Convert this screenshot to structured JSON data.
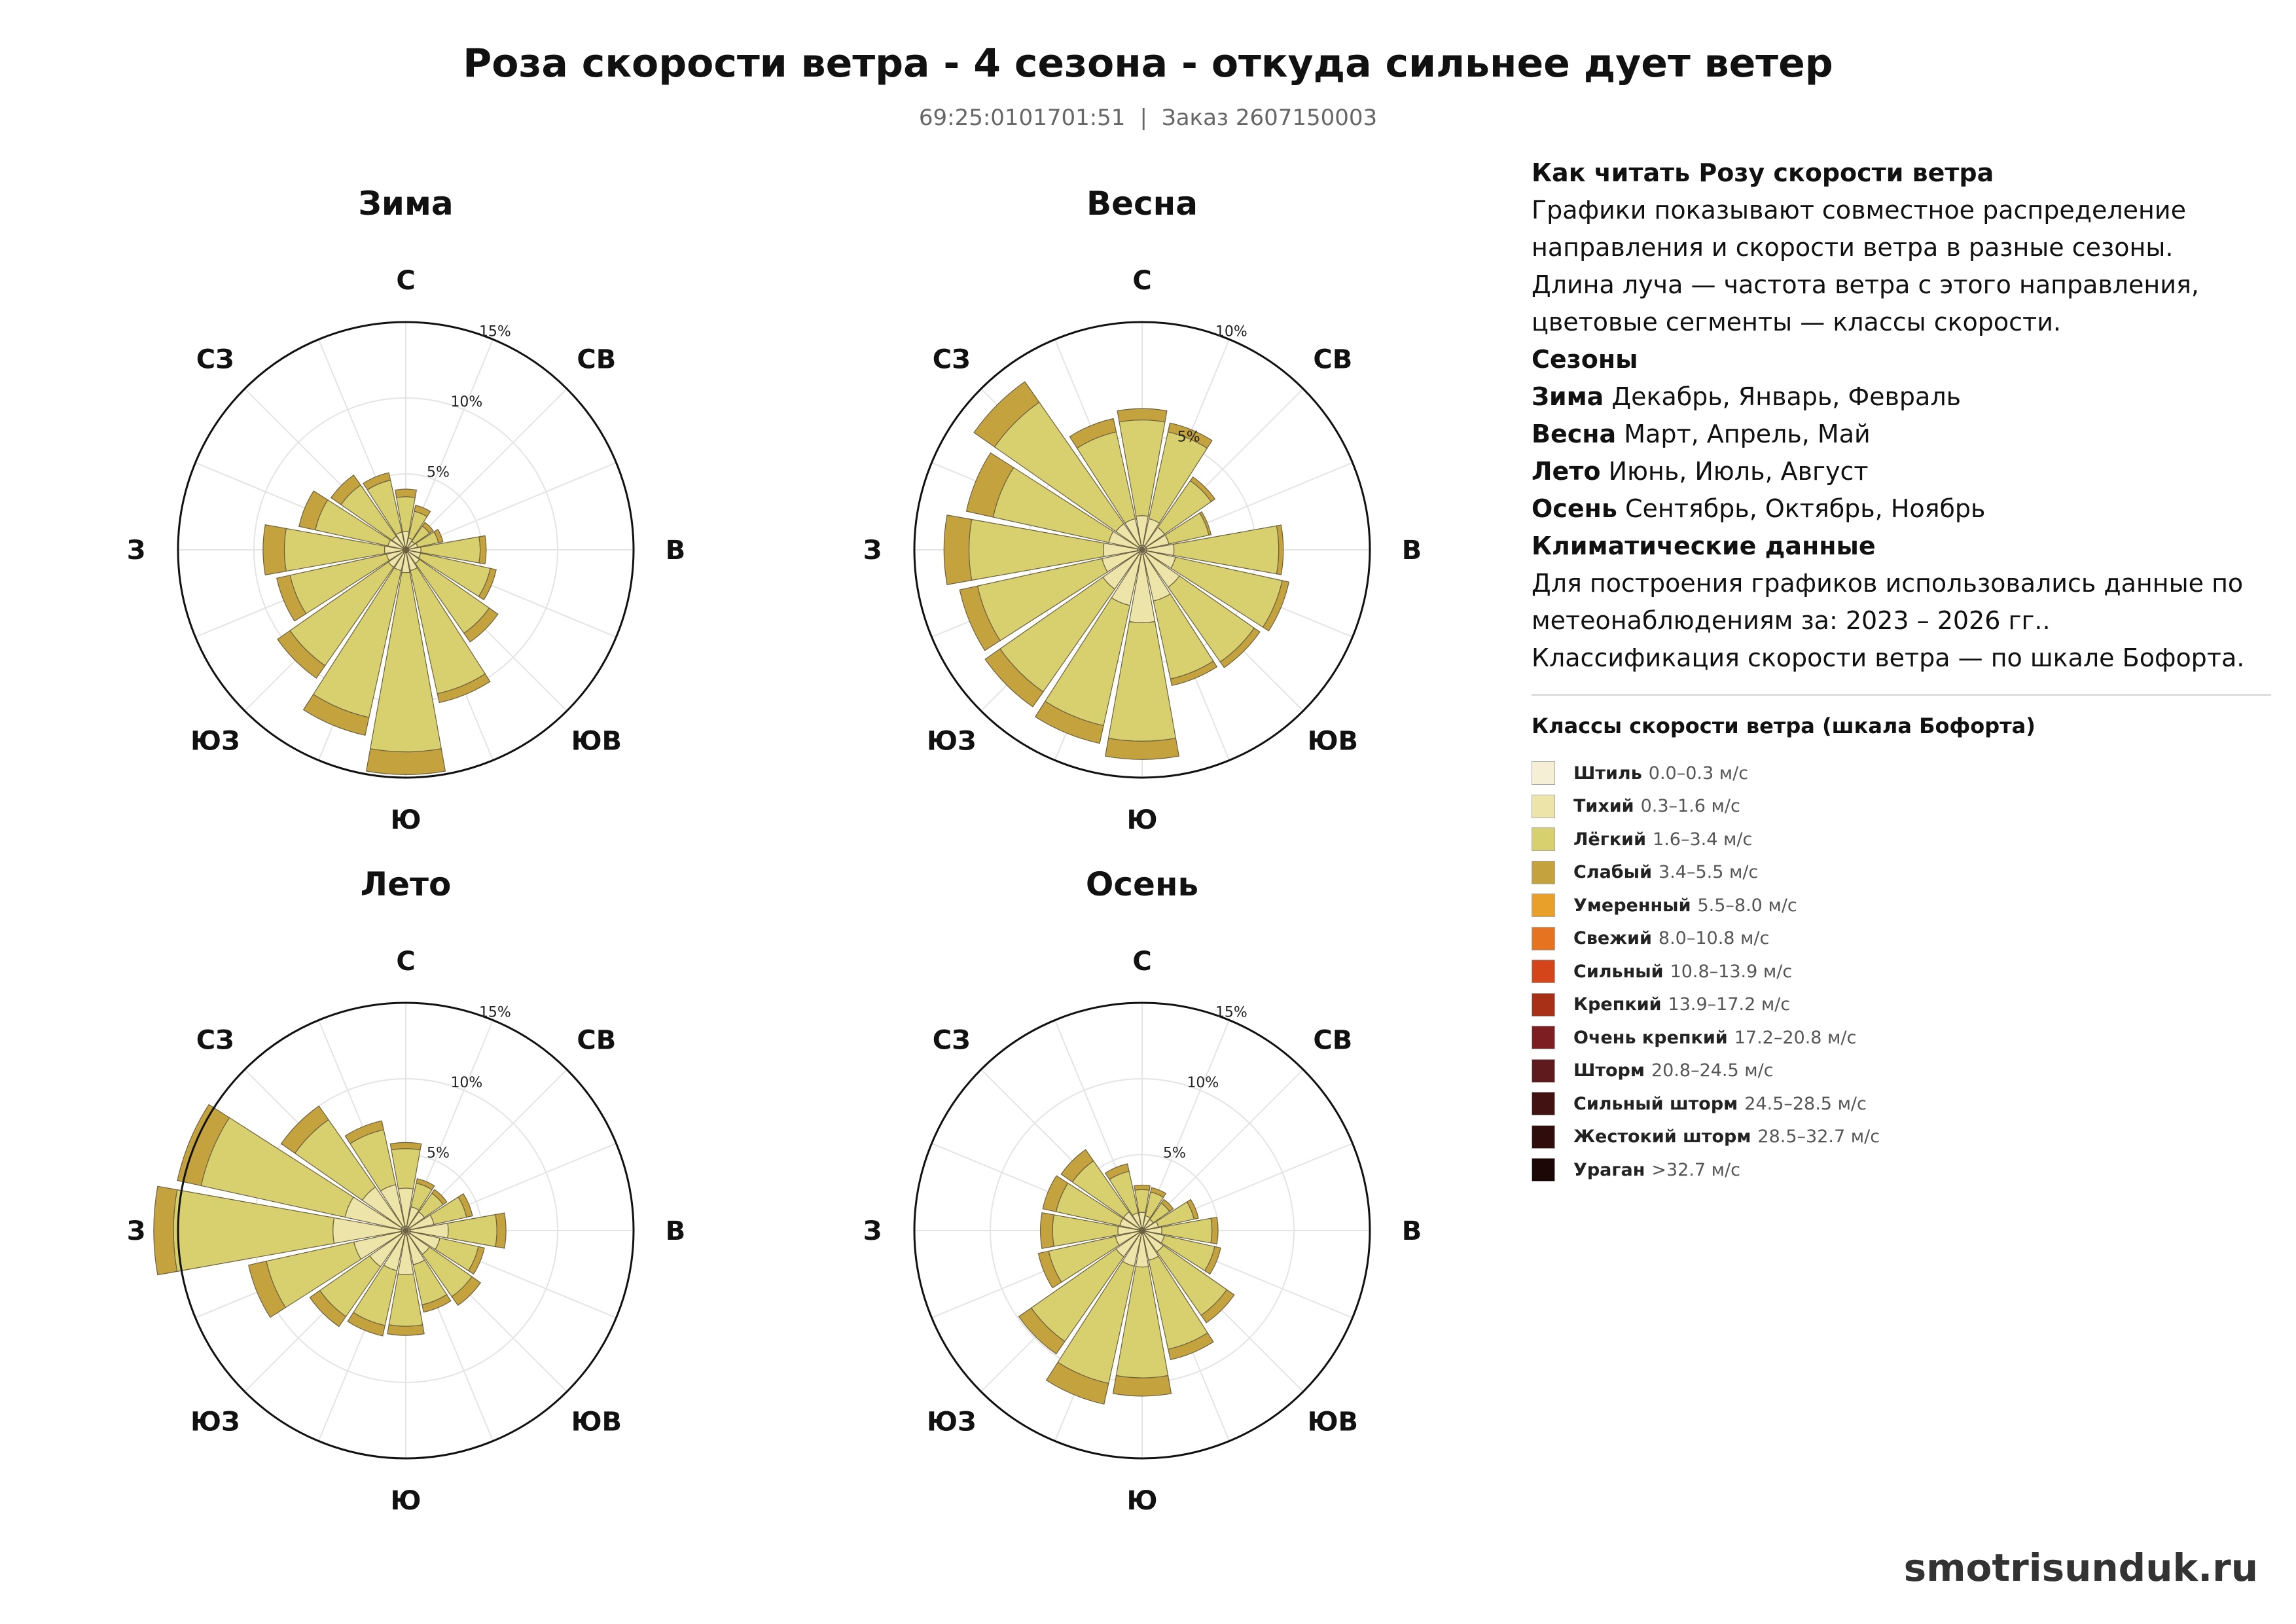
{
  "header": {
    "title": "Роза скорости ветра - 4 сезона - откуда сильнее дует ветер",
    "cadastral": "69:25:0101701:51",
    "separator": "|",
    "order": "Заказ 2607150003"
  },
  "info": {
    "read_title": "Как читать Розу скорости ветра",
    "read_text": "Графики показывают совместное распределение направления и скорости ветра в разные сезоны. Длина луча — частота ветра с этого направления, цветовые сегменты — классы скорости.",
    "seasons_title": "Сезоны",
    "seasons": [
      {
        "name": "Зима",
        "months": "Декабрь, Январь, Февраль"
      },
      {
        "name": "Весна",
        "months": "Март, Апрель, Май"
      },
      {
        "name": "Лето",
        "months": "Июнь, Июль, Август"
      },
      {
        "name": "Осень",
        "months": "Сентябрь, Октябрь, Ноябрь"
      }
    ],
    "climate_title": "Климатические данные",
    "climate_text": "Для построения графиков использовались данные по метеонаблюдениям за: 2023 – 2026 гг..",
    "beaufort_text": "Классификация скорости ветра — по шкале Бофорта."
  },
  "legend": {
    "title": "Классы скорости ветра (шкала Бофорта)",
    "items": [
      {
        "name": "Штиль",
        "range": "0.0–0.3 м/с",
        "color": "#f5f0d5"
      },
      {
        "name": "Тихий",
        "range": "0.3–1.6 м/с",
        "color": "#ece4a8"
      },
      {
        "name": "Лёгкий",
        "range": "1.6–3.4 м/с",
        "color": "#d8d06e"
      },
      {
        "name": "Слабый",
        "range": "3.4–5.5 м/с",
        "color": "#c4a23e"
      },
      {
        "name": "Умеренный",
        "range": "5.5–8.0 м/с",
        "color": "#e8a02a"
      },
      {
        "name": "Свежий",
        "range": "8.0–10.8 м/с",
        "color": "#e6731f"
      },
      {
        "name": "Сильный",
        "range": "10.8–13.9 м/с",
        "color": "#d4451a"
      },
      {
        "name": "Крепкий",
        "range": "13.9–17.2 м/с",
        "color": "#a83016"
      },
      {
        "name": "Очень крепкий",
        "range": "17.2–20.8 м/с",
        "color": "#7d1f22"
      },
      {
        "name": "Шторм",
        "range": "20.8–24.5 м/с",
        "color": "#5e1a1c"
      },
      {
        "name": "Сильный шторм",
        "range": "24.5–28.5 м/с",
        "color": "#421212"
      },
      {
        "name": "Жестокий шторм",
        "range": "28.5–32.7 м/с",
        "color": "#2e0d0c"
      },
      {
        "name": "Ураган",
        "range": ">32.7 м/с",
        "color": "#1c0707"
      }
    ]
  },
  "footer": "smotrisunduk.ru",
  "chart_data": [
    {
      "type": "windrose",
      "title": "Зима",
      "directions": [
        "С",
        "ССВ",
        "СВ",
        "ВСВ",
        "В",
        "ВЮВ",
        "ЮВ",
        "ЮЮВ",
        "Ю",
        "ЮЮЗ",
        "ЮЗ",
        "ЗЮЗ",
        "З",
        "ЗСЗ",
        "СЗ",
        "ССЗ"
      ],
      "direction_labels": [
        "С",
        "СВ",
        "В",
        "ЮВ",
        "Ю",
        "ЮЗ",
        "З",
        "СЗ"
      ],
      "rmax": 15,
      "ring_labels": [
        "5%",
        "10%",
        "15%"
      ],
      "ring_values": [
        5,
        10,
        15
      ],
      "speed_classes": [
        "Штиль",
        "Тихий",
        "Лёгкий",
        "Слабый"
      ],
      "series": [
        {
          "name": "Штиль",
          "values": [
            0.2,
            0.2,
            0.2,
            0.2,
            0.2,
            0.2,
            0.2,
            0.2,
            0.2,
            0.2,
            0.2,
            0.2,
            0.2,
            0.2,
            0.2,
            0.2
          ]
        },
        {
          "name": "Тихий",
          "values": [
            1.0,
            0.6,
            0.5,
            0.6,
            0.8,
            0.8,
            0.9,
            1.2,
            1.3,
            1.2,
            1.2,
            1.1,
            1.2,
            1.0,
            0.9,
            1.0
          ]
        },
        {
          "name": "Лёгкий",
          "values": [
            2.3,
            1.8,
            1.2,
            1.4,
            3.9,
            4.7,
            5.6,
            8.3,
            11.8,
            9.9,
            7.9,
            6.5,
            6.6,
            4.9,
            4.1,
            3.5
          ]
        },
        {
          "name": "Слабый",
          "values": [
            0.5,
            0.4,
            0.3,
            0.3,
            0.4,
            0.4,
            0.7,
            0.6,
            1.5,
            1.2,
            1.0,
            0.9,
            1.4,
            1.1,
            0.8,
            0.5
          ]
        }
      ]
    },
    {
      "type": "windrose",
      "title": "Весна",
      "directions": [
        "С",
        "ССВ",
        "СВ",
        "ВСВ",
        "В",
        "ВЮВ",
        "ЮВ",
        "ЮЮВ",
        "Ю",
        "ЮЮЗ",
        "ЮЗ",
        "ЗЮЗ",
        "З",
        "ЗСЗ",
        "СЗ",
        "ССЗ"
      ],
      "direction_labels": [
        "С",
        "СВ",
        "В",
        "ЮВ",
        "Ю",
        "ЮЗ",
        "З",
        "СЗ"
      ],
      "rmax": 10,
      "ring_labels": [
        "5%",
        "10%"
      ],
      "ring_values": [
        5,
        10
      ],
      "speed_classes": [
        "Штиль",
        "Тихий",
        "Лёгкий",
        "Слабый"
      ],
      "series": [
        {
          "name": "Штиль",
          "values": [
            0.2,
            0.2,
            0.2,
            0.2,
            0.2,
            0.2,
            0.2,
            0.2,
            0.2,
            0.2,
            0.2,
            0.2,
            0.2,
            0.2,
            0.2,
            0.2
          ]
        },
        {
          "name": "Тихий",
          "values": [
            1.3,
            1.2,
            1.0,
            1.0,
            1.2,
            1.3,
            1.8,
            2.1,
            3.0,
            2.3,
            1.9,
            1.6,
            1.5,
            1.3,
            1.2,
            1.2
          ]
        },
        {
          "name": "Лёгкий",
          "values": [
            4.2,
            3.9,
            2.5,
            1.8,
            4.6,
            4.8,
            4.0,
            3.5,
            5.2,
            5.4,
            5.5,
            5.6,
            5.9,
            5.2,
            6.5,
            3.9
          ]
        },
        {
          "name": "Слабый",
          "values": [
            0.5,
            0.4,
            0.2,
            0.1,
            0.2,
            0.3,
            0.3,
            0.3,
            0.8,
            0.8,
            0.8,
            0.8,
            1.1,
            1.2,
            1.1,
            0.6
          ]
        }
      ]
    },
    {
      "type": "windrose",
      "title": "Лето",
      "directions": [
        "С",
        "ССВ",
        "СВ",
        "ВСВ",
        "В",
        "ВЮВ",
        "ЮВ",
        "ЮЮВ",
        "Ю",
        "ЮЮЗ",
        "ЮЗ",
        "ЗЮЗ",
        "З",
        "ЗСЗ",
        "СЗ",
        "ССЗ"
      ],
      "direction_labels": [
        "С",
        "СВ",
        "В",
        "ЮВ",
        "Ю",
        "ЮЗ",
        "З",
        "СЗ"
      ],
      "rmax": 15,
      "ring_labels": [
        "5%",
        "10%",
        "15%"
      ],
      "ring_values": [
        5,
        10,
        15
      ],
      "speed_classes": [
        "Штиль",
        "Тихий",
        "Лёгкий",
        "Слабый"
      ],
      "series": [
        {
          "name": "Штиль",
          "values": [
            0.3,
            0.3,
            0.3,
            0.3,
            0.3,
            0.3,
            0.3,
            0.3,
            0.3,
            0.3,
            0.3,
            0.3,
            0.3,
            0.3,
            0.3,
            0.3
          ]
        },
        {
          "name": "Тихий",
          "values": [
            2.5,
            1.3,
            1.2,
            1.6,
            2.5,
            2.0,
            1.6,
            2.0,
            2.6,
            2.4,
            2.6,
            3.2,
            4.5,
            3.8,
            3.2,
            2.8
          ]
        },
        {
          "name": "Лёгкий",
          "values": [
            2.6,
            1.6,
            1.5,
            2.2,
            3.2,
            2.6,
            3.4,
            2.7,
            3.4,
            3.7,
            4.0,
            5.9,
            10.5,
            9.7,
            5.4,
            3.7
          ]
        },
        {
          "name": "Слабый",
          "values": [
            0.4,
            0.3,
            0.3,
            0.4,
            0.6,
            0.4,
            0.7,
            0.5,
            0.6,
            0.7,
            0.8,
            1.2,
            1.3,
            1.6,
            1.1,
            0.6
          ]
        }
      ]
    },
    {
      "type": "windrose",
      "title": "Осень",
      "directions": [
        "С",
        "ССВ",
        "СВ",
        "ВСВ",
        "В",
        "ВЮВ",
        "ЮВ",
        "ЮЮВ",
        "Ю",
        "ЮЮЗ",
        "ЮЗ",
        "ЗЮЗ",
        "З",
        "ЗСЗ",
        "СЗ",
        "ССЗ"
      ],
      "direction_labels": [
        "С",
        "СВ",
        "В",
        "ЮВ",
        "Ю",
        "ЮЗ",
        "З",
        "СЗ"
      ],
      "rmax": 15,
      "ring_labels": [
        "5%",
        "10%",
        "15%"
      ],
      "ring_values": [
        5,
        10,
        15
      ],
      "speed_classes": [
        "Штиль",
        "Тихий",
        "Лёгкий",
        "Слабый"
      ],
      "series": [
        {
          "name": "Штиль",
          "values": [
            0.2,
            0.2,
            0.2,
            0.2,
            0.2,
            0.2,
            0.2,
            0.2,
            0.2,
            0.2,
            0.2,
            0.2,
            0.2,
            0.2,
            0.2,
            0.2
          ]
        },
        {
          "name": "Тихий",
          "values": [
            1.0,
            0.8,
            0.7,
            0.9,
            1.1,
            1.3,
            1.5,
            1.8,
            2.2,
            2.2,
            1.9,
            1.6,
            1.4,
            1.3,
            1.3,
            1.0
          ]
        },
        {
          "name": "Лёгкий",
          "values": [
            1.5,
            1.6,
            1.3,
            2.4,
            3.3,
            3.4,
            5.1,
            6.0,
            7.3,
            7.9,
            6.8,
            4.5,
            4.3,
            4.3,
            4.1,
            2.8
          ]
        },
        {
          "name": "Слабый",
          "values": [
            0.3,
            0.3,
            0.3,
            0.3,
            0.4,
            0.4,
            0.6,
            0.7,
            1.2,
            1.4,
            1.0,
            0.7,
            0.8,
            0.9,
            0.9,
            0.5
          ]
        }
      ]
    }
  ]
}
